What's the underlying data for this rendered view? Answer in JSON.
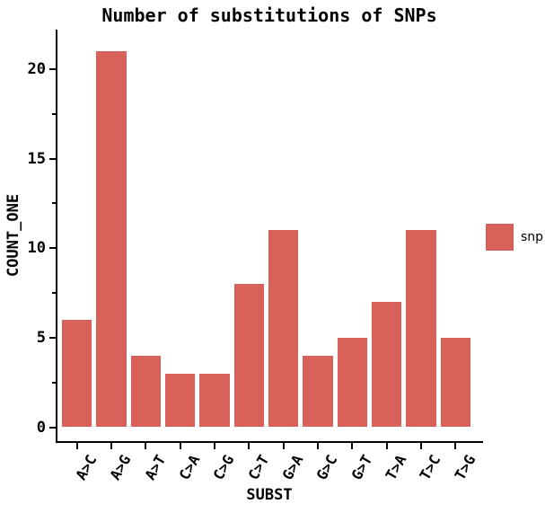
{
  "chart_data": {
    "type": "bar",
    "title": "Number of substitutions of SNPs",
    "xlabel": "SUBST",
    "ylabel": "COUNT_ONE",
    "categories": [
      "A>C",
      "A>G",
      "A>T",
      "C>A",
      "C>G",
      "C>T",
      "G>A",
      "G>C",
      "G>T",
      "T>A",
      "T>C",
      "T>G"
    ],
    "values": [
      6,
      21,
      4,
      3,
      3,
      8,
      11,
      4,
      5,
      7,
      11,
      5
    ],
    "series": [
      {
        "name": "snp",
        "values": [
          6,
          21,
          4,
          3,
          3,
          8,
          11,
          4,
          5,
          7,
          11,
          5
        ]
      }
    ],
    "legend": {
      "label": "snp",
      "position": "center-right-outside"
    },
    "ylim": [
      0,
      22
    ],
    "yticks_major": [
      0,
      5,
      10,
      15,
      20
    ],
    "yticks_minor": [
      2.5,
      7.5,
      12.5,
      17.5
    ],
    "xtick_rotation_deg": 60,
    "bar_color": "#d8625a",
    "axis_color": "#000000",
    "grid": false,
    "spines": [
      "left",
      "bottom"
    ]
  }
}
